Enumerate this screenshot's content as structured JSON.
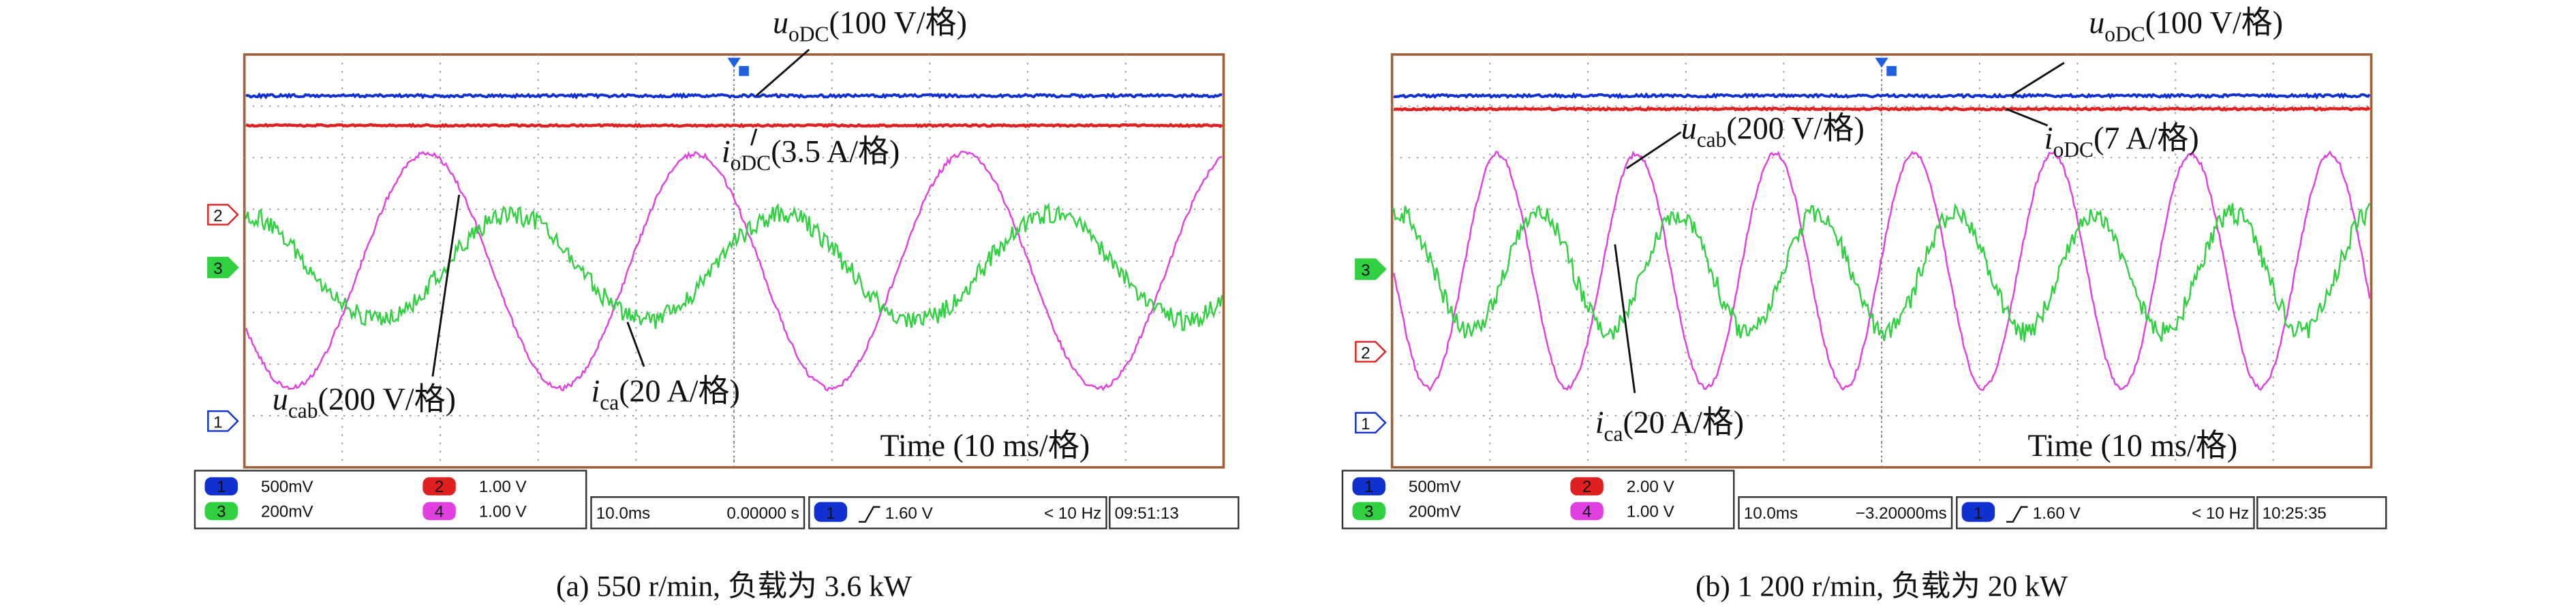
{
  "panels": [
    {
      "annotations": [
        {
          "symbol": "u",
          "subscript": "oDC",
          "scale": "(100 V/格)"
        },
        {
          "symbol": "i",
          "subscript": "oDC",
          "scale": "(3.5 A/格)"
        },
        {
          "symbol": "u",
          "subscript": "cab",
          "scale": "(200 V/格)"
        },
        {
          "symbol": "i",
          "subscript": "ca",
          "scale": "(20 A/格)"
        }
      ],
      "time_base": "Time (10 ms/格)",
      "channel_markers": [
        "2",
        "3",
        "1"
      ],
      "status": {
        "channels": [
          {
            "number": "1",
            "setting": "500mV"
          },
          {
            "number": "2",
            "setting": "1.00 V"
          },
          {
            "number": "3",
            "setting": "200mV"
          },
          {
            "number": "4",
            "setting": "1.00 V"
          }
        ],
        "timebase": "10.0ms",
        "position": "0.00000 s",
        "trigger_channel": "1",
        "trigger_level": "1.60 V",
        "frequency": "< 10 Hz",
        "time": "09:51:13"
      },
      "caption": "(a) 550 r/min, 负载为 3.6 kW"
    },
    {
      "annotations": [
        {
          "symbol": "u",
          "subscript": "oDC",
          "scale": "(100 V/格)"
        },
        {
          "symbol": "i",
          "subscript": "oDC",
          "scale": "(7 A/格)"
        },
        {
          "symbol": "u",
          "subscript": "cab",
          "scale": "(200 V/格)"
        },
        {
          "symbol": "i",
          "subscript": "ca",
          "scale": "(20 A/格)"
        }
      ],
      "time_base": "Time (10 ms/格)",
      "channel_markers": [
        "3",
        "2",
        "1"
      ],
      "status": {
        "channels": [
          {
            "number": "1",
            "setting": "500mV"
          },
          {
            "number": "2",
            "setting": "2.00 V"
          },
          {
            "number": "3",
            "setting": "200mV"
          },
          {
            "number": "4",
            "setting": "1.00 V"
          }
        ],
        "timebase": "10.0ms",
        "position": "−3.20000ms",
        "trigger_channel": "1",
        "trigger_level": "1.60 V",
        "frequency": "< 10 Hz",
        "time": "10:25:35"
      },
      "caption": "(b) 1 200 r/min, 负载为 20 kW"
    }
  ]
}
